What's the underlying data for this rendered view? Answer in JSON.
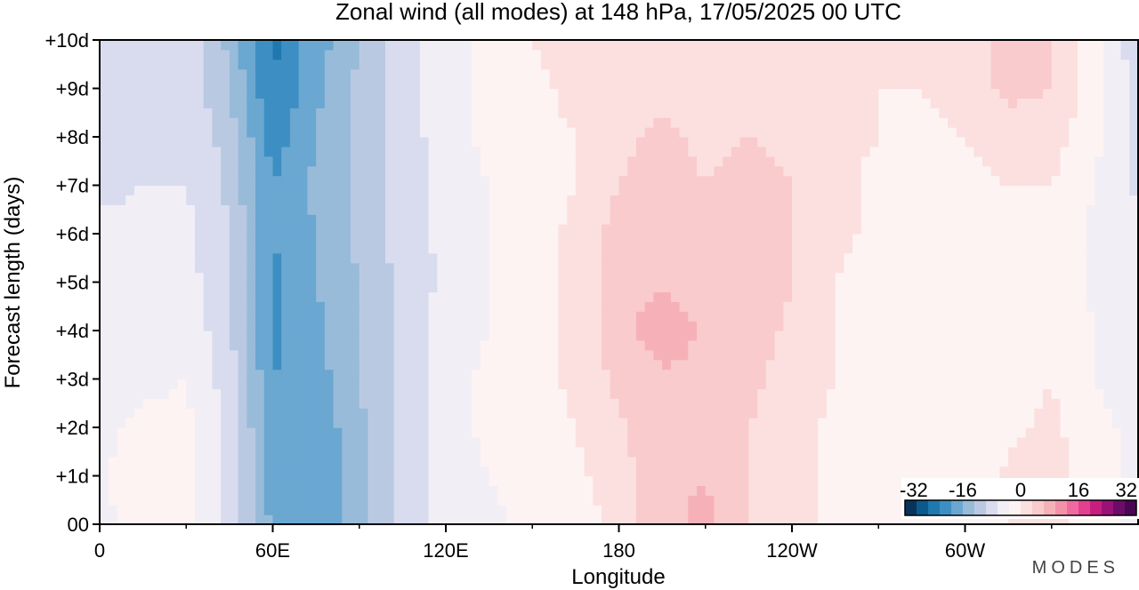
{
  "chart_data": {
    "type": "heatmap",
    "title": "Zonal wind (all modes) at 148 hPa,  17/05/2025  00 UTC",
    "xlabel": "Longitude",
    "ylabel": "Forecast length (days)",
    "x_ticks": [
      {
        "lon": 0,
        "label": "0"
      },
      {
        "lon": 60,
        "label": "60E"
      },
      {
        "lon": 120,
        "label": "120E"
      },
      {
        "lon": 180,
        "label": "180"
      },
      {
        "lon": 240,
        "label": "120W"
      },
      {
        "lon": 300,
        "label": "60W"
      }
    ],
    "xlim": [
      0,
      360
    ],
    "ylim": [
      0,
      10
    ],
    "y_ticks": [
      {
        "day": 0,
        "label": "00"
      },
      {
        "day": 1,
        "label": "+1d"
      },
      {
        "day": 2,
        "label": "+2d"
      },
      {
        "day": 3,
        "label": "+3d"
      },
      {
        "day": 4,
        "label": "+4d"
      },
      {
        "day": 5,
        "label": "+5d"
      },
      {
        "day": 6,
        "label": "+6d"
      },
      {
        "day": 7,
        "label": "+7d"
      },
      {
        "day": 8,
        "label": "+8d"
      },
      {
        "day": 9,
        "label": "+9d"
      },
      {
        "day": 10,
        "label": "+10d"
      }
    ],
    "colorbar": {
      "min": -32,
      "max": 32,
      "step": 4,
      "tick_labels": [
        "-32",
        "-16",
        "0",
        "16",
        "32"
      ],
      "colors": [
        "#08345c",
        "#0a5a8e",
        "#1f78b0",
        "#3d8fc3",
        "#6aa7d1",
        "#98bbd9",
        "#bac9e2",
        "#d8dcee",
        "#f2eef6",
        "#fdf3f2",
        "#fbe0df",
        "#f9cbcc",
        "#f6b1b8",
        "#f391a8",
        "#ee6aa0",
        "#e4408f",
        "#c81e7f",
        "#9a1278",
        "#6e0b6a",
        "#4a0652"
      ]
    },
    "grid": false,
    "values_description": "Zonal wind (m/s) by longitude (columns, 0-360 step 15) and forecast day (rows, 0-10 step 1)",
    "x": [
      0,
      15,
      30,
      45,
      60,
      75,
      90,
      105,
      120,
      135,
      150,
      165,
      180,
      195,
      210,
      225,
      240,
      255,
      270,
      285,
      300,
      315,
      330,
      345,
      360
    ],
    "y": [
      0,
      1,
      2,
      3,
      4,
      5,
      6,
      7,
      8,
      9,
      10
    ],
    "z": [
      [
        3,
        6,
        5,
        -1,
        -13,
        -16,
        -10,
        -3,
        2,
        3,
        5,
        6,
        9,
        15,
        17,
        12,
        9,
        7,
        6,
        5,
        4,
        8,
        10,
        5,
        3
      ],
      [
        3,
        7,
        5,
        -2,
        -14,
        -15,
        -10,
        -3,
        2,
        4,
        6,
        7,
        10,
        15,
        16,
        12,
        9,
        7,
        5,
        4,
        4,
        9,
        10,
        5,
        3
      ],
      [
        3,
        5,
        5,
        -1,
        -15,
        -15,
        -9,
        -3,
        2,
        5,
        6,
        8,
        11,
        16,
        16,
        12,
        10,
        7,
        5,
        4,
        5,
        7,
        9,
        5,
        3
      ],
      [
        2,
        3,
        4,
        -2,
        -16,
        -14,
        -8,
        -3,
        2,
        5,
        6,
        9,
        13,
        15,
        15,
        13,
        10,
        8,
        6,
        4,
        4,
        6,
        8,
        4,
        2
      ],
      [
        2,
        2,
        3,
        -3,
        -17,
        -13,
        -8,
        -3,
        2,
        4,
        6,
        9,
        14,
        19,
        15,
        14,
        11,
        8,
        6,
        4,
        4,
        6,
        7,
        4,
        2
      ],
      [
        1,
        1,
        2,
        -4,
        -17,
        -12,
        -8,
        -3,
        1,
        4,
        6,
        9,
        15,
        15,
        14,
        15,
        12,
        8,
        6,
        5,
        4,
        6,
        7,
        3,
        1
      ],
      [
        1,
        1,
        1,
        -4,
        -16,
        -12,
        -7,
        -2,
        1,
        4,
        6,
        9,
        14,
        14,
        13,
        15,
        12,
        9,
        7,
        5,
        5,
        7,
        7,
        3,
        1
      ],
      [
        -1,
        0,
        0,
        -5,
        -16,
        -11,
        -7,
        -2,
        1,
        4,
        6,
        8,
        12,
        15,
        12,
        13,
        12,
        9,
        7,
        6,
        6,
        8,
        8,
        4,
        -1
      ],
      [
        -1,
        -1,
        0,
        -6,
        -18,
        -12,
        -7,
        -2,
        2,
        5,
        7,
        8,
        11,
        13,
        11,
        12,
        11,
        9,
        8,
        7,
        8,
        10,
        10,
        5,
        -1
      ],
      [
        -2,
        -1,
        -1,
        -8,
        -20,
        -13,
        -7,
        -2,
        2,
        5,
        7,
        9,
        11,
        11,
        10,
        11,
        10,
        9,
        8,
        8,
        10,
        13,
        12,
        6,
        -2
      ],
      [
        -3,
        -2,
        -2,
        -9,
        -21,
        -14,
        -8,
        -2,
        2,
        5,
        8,
        10,
        11,
        10,
        9,
        10,
        10,
        9,
        9,
        9,
        11,
        13,
        12,
        6,
        -3
      ]
    ]
  },
  "watermark": "MODES"
}
